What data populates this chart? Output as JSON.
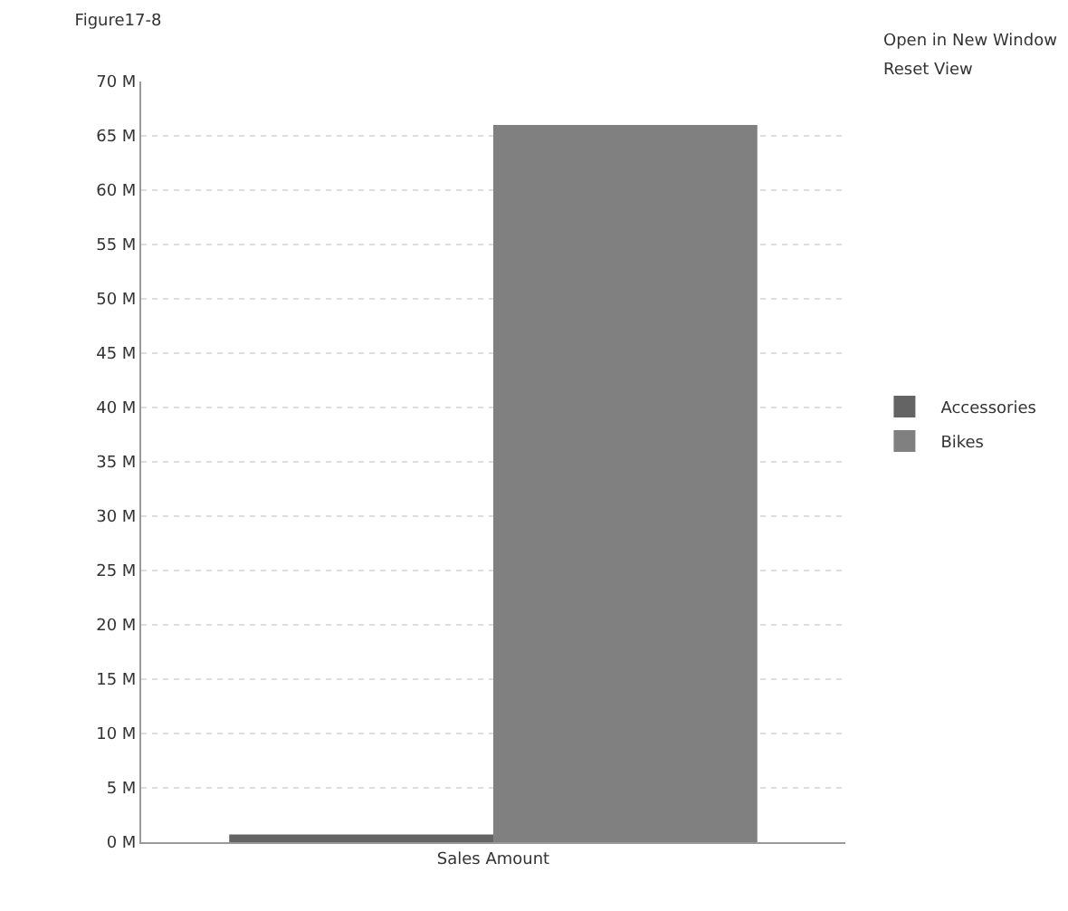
{
  "chart_data": {
    "type": "bar",
    "title": "Figure17-8",
    "categories": [
      "Sales Amount"
    ],
    "series": [
      {
        "name": "Accessories",
        "color": "#646464",
        "values": [
          700000
        ]
      },
      {
        "name": "Bikes",
        "color": "#808080",
        "values": [
          66000000
        ]
      }
    ],
    "ylim": [
      0,
      70000000
    ],
    "yticks": [
      {
        "value": 0,
        "label": "0 M"
      },
      {
        "value": 5000000,
        "label": "5 M"
      },
      {
        "value": 10000000,
        "label": "10 M"
      },
      {
        "value": 15000000,
        "label": "15 M"
      },
      {
        "value": 20000000,
        "label": "20 M"
      },
      {
        "value": 25000000,
        "label": "25 M"
      },
      {
        "value": 30000000,
        "label": "30 M"
      },
      {
        "value": 35000000,
        "label": "35 M"
      },
      {
        "value": 40000000,
        "label": "40 M"
      },
      {
        "value": 45000000,
        "label": "45 M"
      },
      {
        "value": 50000000,
        "label": "50 M"
      },
      {
        "value": 55000000,
        "label": "55 M"
      },
      {
        "value": 60000000,
        "label": "60 M"
      },
      {
        "value": 65000000,
        "label": "65 M"
      },
      {
        "value": 70000000,
        "label": "70 M"
      }
    ],
    "grid": "y",
    "legend": "right",
    "annotations": [
      "Open in New Window",
      "Reset View"
    ]
  }
}
